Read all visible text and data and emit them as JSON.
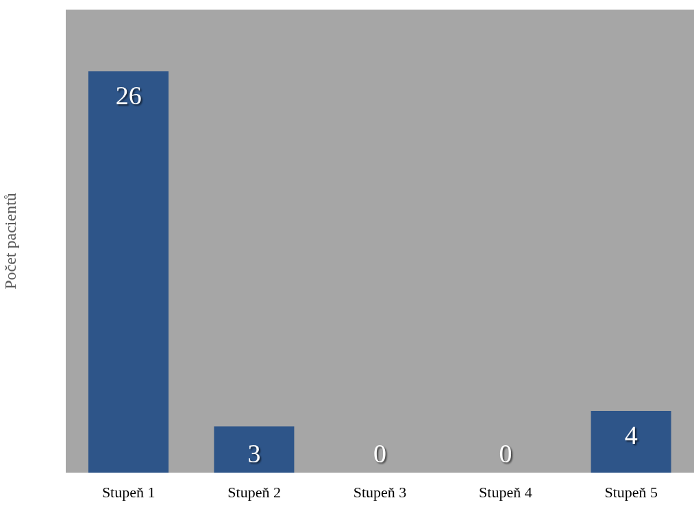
{
  "chart_data": {
    "type": "bar",
    "ylabel": "Počet pacientů",
    "categories": [
      "Stupeň 1",
      "Stupeň 2",
      "Stupeň 3",
      "Stupeň 4",
      "Stupeň 5"
    ],
    "values": [
      26,
      3,
      0,
      0,
      4
    ],
    "color": "#2e5589",
    "ylim": [
      0,
      30
    ],
    "data_labels": true
  }
}
